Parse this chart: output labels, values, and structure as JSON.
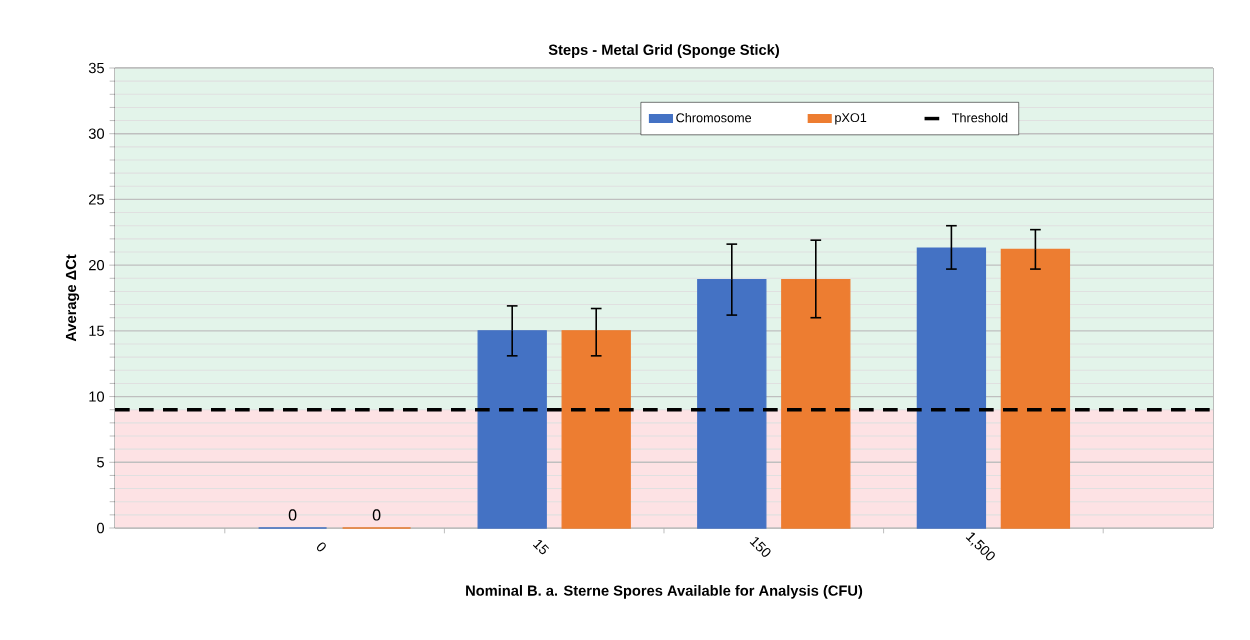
{
  "chart_data": {
    "type": "bar",
    "title": "Steps - Metal Grid (Sponge Stick)",
    "xlabel": "Nominal B. a. Sterne Spores Available for Analysis (CFU)",
    "ylabel": "Average ΔCt",
    "categories": [
      "0",
      "15",
      "150",
      "1,500"
    ],
    "series": [
      {
        "name": "Chromosome",
        "color": "#4472c4",
        "values": [
          0,
          15.0,
          18.9,
          21.3
        ],
        "errors": [
          null,
          [
            13.1,
            16.9
          ],
          [
            16.2,
            21.6
          ],
          [
            19.7,
            23.0
          ]
        ],
        "value_labels": [
          "0",
          null,
          null,
          null
        ]
      },
      {
        "name": "pXO1",
        "color": "#ed7d31",
        "values": [
          0,
          15.0,
          18.9,
          21.2
        ],
        "errors": [
          null,
          [
            13.1,
            16.7
          ],
          [
            16.0,
            21.9
          ],
          [
            19.7,
            22.7
          ]
        ],
        "value_labels": [
          "0",
          null,
          null,
          null
        ]
      }
    ],
    "ylim": [
      0,
      35
    ],
    "yticks": [
      0,
      5,
      10,
      15,
      20,
      25,
      30,
      35
    ],
    "grid": "y",
    "legend": "top",
    "ref_lines": [
      {
        "axis": "y",
        "value": 9,
        "label": "Threshold",
        "color": "#000000",
        "line_style": "dashed"
      }
    ],
    "bands": [
      {
        "axis": "y",
        "from": 0,
        "to": 9,
        "color": "#fde2e4"
      },
      {
        "axis": "y",
        "from": 9,
        "to": 35,
        "color": "#e3f4ea"
      }
    ]
  }
}
